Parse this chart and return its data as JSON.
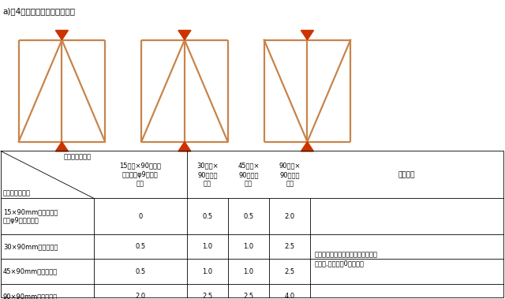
{
  "title": "a)围4：両側が片筋かいの場合",
  "brace_color": "#C8844A",
  "arrow_color": "#CC3300",
  "bg_color": "#ffffff",
  "header_diag_top": "一方が片筋かい",
  "header_diag_bot": "他方が片筋かい",
  "col_headers": [
    "15以上×90以上の\n木材又はφ9以上の\n鉄筋",
    "30以上×\n90以上の\n木材",
    "45以上×\n90以上の\n木材",
    "90以上×\n90以上の\n木材"
  ],
  "note_header": "備　　考",
  "row_labels": [
    "15×90mm以上の木材\n又はφ9以上の鉄筋",
    "30×90mm以上の木材",
    "45×90mm以上の木材",
    "90×90mm以上の木材"
  ],
  "table_data": [
    [
      "0",
      "0.5",
      "0.5",
      "2.0"
    ],
    [
      "0.5",
      "1.0",
      "1.0",
      "2.5"
    ],
    [
      "0.5",
      "1.0",
      "1.0",
      "2.5"
    ],
    [
      "2.0",
      "2.5",
      "2.5",
      "4.0"
    ]
  ],
  "note": "両筋かいがともに柱脚部に取り付く\n場合は,補正値を0とする。",
  "fig_width": 6.4,
  "fig_height": 3.79,
  "dpi": 100
}
